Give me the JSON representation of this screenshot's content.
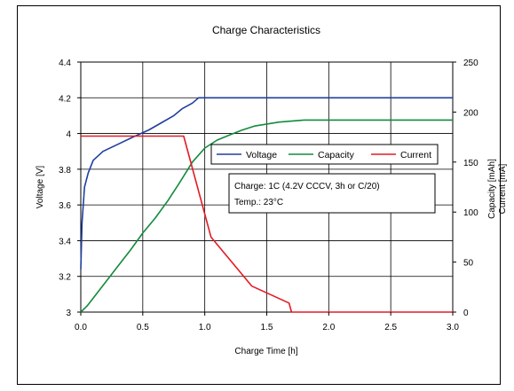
{
  "chart_data": {
    "type": "line",
    "title": "Charge Characteristics",
    "xlabel": "Charge Time [h]",
    "ylabel_left": "Voltage [V]",
    "ylabel_right": [
      "Capacity [mAh]",
      "Current [mA]"
    ],
    "xlim": [
      0,
      3.0
    ],
    "ylim_left": [
      3,
      4.4
    ],
    "ylim_right": [
      0,
      250
    ],
    "x_ticks": [
      "0.0",
      "0.5",
      "1.0",
      "1.5",
      "2.0",
      "2.5",
      "3.0"
    ],
    "y_ticks_left": [
      "3",
      "3.2",
      "3.4",
      "3.6",
      "3.8",
      "4",
      "4.2",
      "4.4"
    ],
    "y_ticks_right": [
      "0",
      "50",
      "100",
      "150",
      "200",
      "250"
    ],
    "grid": true,
    "legend_placement": "center-right",
    "annotation": [
      "Charge: 1C (4.2V CCCV, 3h or C/20)",
      "Temp.: 23°C"
    ],
    "series": [
      {
        "name": "Voltage",
        "axis": "left",
        "color": "#1f3f9f",
        "x": [
          0.0,
          0.01,
          0.03,
          0.06,
          0.1,
          0.18,
          0.3,
          0.42,
          0.55,
          0.65,
          0.75,
          0.82,
          0.9,
          0.95,
          1.0,
          1.5,
          2.0,
          2.5,
          3.0
        ],
        "y": [
          3.24,
          3.5,
          3.7,
          3.78,
          3.85,
          3.9,
          3.94,
          3.98,
          4.02,
          4.06,
          4.1,
          4.14,
          4.17,
          4.2,
          4.2,
          4.2,
          4.2,
          4.2,
          4.2
        ]
      },
      {
        "name": "Capacity",
        "axis": "right",
        "color": "#138a3c",
        "x": [
          0.0,
          0.05,
          0.1,
          0.2,
          0.3,
          0.4,
          0.5,
          0.6,
          0.7,
          0.8,
          0.9,
          1.0,
          1.1,
          1.2,
          1.3,
          1.4,
          1.5,
          1.6,
          1.7,
          1.8,
          2.0,
          2.5,
          3.0
        ],
        "y": [
          0,
          6,
          14,
          30,
          46,
          62,
          79,
          94,
          111,
          130,
          150,
          164,
          172,
          177,
          182,
          186,
          188,
          190,
          191,
          192,
          192,
          192,
          192
        ]
      },
      {
        "name": "Current",
        "axis": "right",
        "color": "#e21b23",
        "x": [
          0.0,
          0.83,
          1.05,
          1.38,
          1.68,
          1.7,
          3.0
        ],
        "y": [
          176,
          176,
          75,
          26,
          9,
          0,
          0
        ]
      }
    ]
  }
}
